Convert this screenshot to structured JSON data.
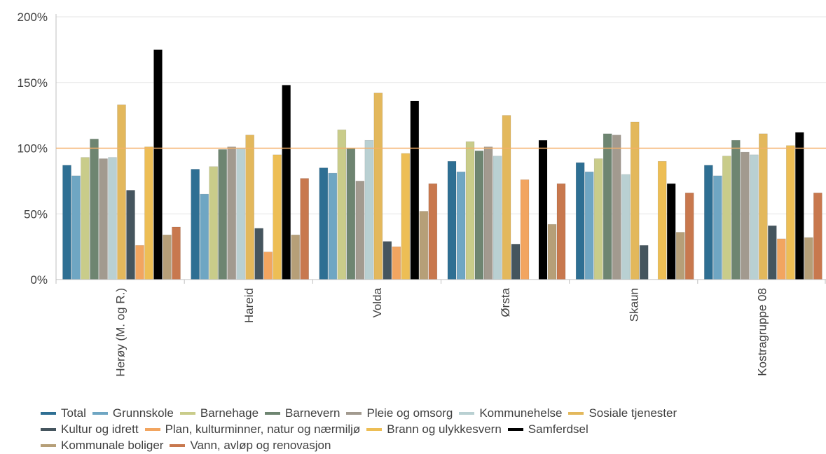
{
  "chart_data": {
    "type": "bar",
    "categories": [
      "Herøy (M. og R.)",
      "Hareid",
      "Volda",
      "Ørsta",
      "Skaun",
      "Kostragruppe 08"
    ],
    "y_ticks": [
      "0%",
      "50%",
      "100%",
      "150%",
      "200%"
    ],
    "ylim": [
      0,
      200
    ],
    "grid": true,
    "reference_line": 100,
    "reference_line_color": "#F4B06A",
    "legend_position": "bottom",
    "series": [
      {
        "name": "Total",
        "color": "#2E6F93",
        "values": [
          87,
          84,
          85,
          90,
          89,
          87
        ]
      },
      {
        "name": "Grunnskole",
        "color": "#6FA6C3",
        "values": [
          79,
          65,
          81,
          82,
          82,
          79
        ]
      },
      {
        "name": "Barnehage",
        "color": "#C9CC8A",
        "values": [
          93,
          86,
          114,
          105,
          92,
          94
        ]
      },
      {
        "name": "Barnevern",
        "color": "#6E8571",
        "values": [
          107,
          99,
          100,
          98,
          111,
          106
        ]
      },
      {
        "name": "Pleie og omsorg",
        "color": "#A29A8F",
        "values": [
          92,
          101,
          75,
          101,
          110,
          97
        ]
      },
      {
        "name": "Kommunehelse",
        "color": "#B9D0D2",
        "values": [
          93,
          100,
          106,
          94,
          80,
          95
        ]
      },
      {
        "name": "Sosiale tjenester",
        "color": "#E3B85C",
        "values": [
          133,
          110,
          142,
          125,
          120,
          111
        ]
      },
      {
        "name": "Kultur og idrett",
        "color": "#45555E",
        "values": [
          68,
          39,
          29,
          27,
          26,
          41
        ]
      },
      {
        "name": "Plan, kulturminner, natur og nærmiljø",
        "color": "#F2A560",
        "values": [
          26,
          21,
          25,
          76,
          0,
          31
        ]
      },
      {
        "name": "Brann og ulykkesvern",
        "color": "#EDBE55",
        "values": [
          101,
          95,
          96,
          0,
          90,
          102
        ]
      },
      {
        "name": "Samferdsel",
        "color": "#000000",
        "values": [
          175,
          148,
          136,
          106,
          73,
          112
        ]
      },
      {
        "name": "Kommunale boliger",
        "color": "#B69F78",
        "values": [
          34,
          34,
          52,
          42,
          36,
          32
        ]
      },
      {
        "name": "Vann, avløp og renovasjon",
        "color": "#C8784E",
        "values": [
          40,
          77,
          73,
          73,
          66,
          66
        ]
      }
    ]
  },
  "legend_rows": [
    [
      0,
      1,
      2,
      3,
      4,
      5,
      6
    ],
    [
      7,
      8,
      9,
      10
    ],
    [
      11,
      12
    ]
  ]
}
